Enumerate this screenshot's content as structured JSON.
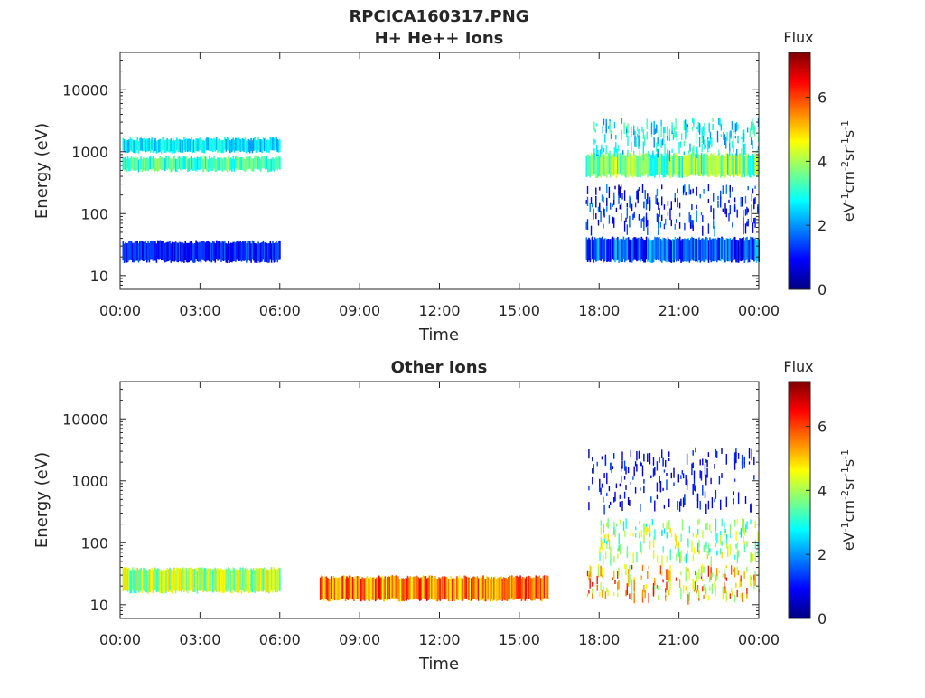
{
  "figure_title": "RPCICA160317.PNG",
  "colors": {
    "colormap": [
      "#00007f",
      "#0000ff",
      "#007fff",
      "#00ffff",
      "#7fff7f",
      "#ffff00",
      "#ff7f00",
      "#ff0000",
      "#7f0000"
    ],
    "axis": "#262626"
  },
  "chart_data": [
    {
      "type": "heatmap",
      "title": "H+ He++ Ions",
      "xlabel": "Time",
      "ylabel": "Energy (eV)",
      "xlim": [
        "00:00",
        "24:00"
      ],
      "ylim_eV": [
        6,
        40000
      ],
      "y_scale": "log",
      "x_ticks": [
        "00:00",
        "03:00",
        "06:00",
        "09:00",
        "12:00",
        "15:00",
        "18:00",
        "21:00",
        "00:00"
      ],
      "y_ticks": [
        {
          "value": 10,
          "label": "10"
        },
        {
          "value": 100,
          "label": "100"
        },
        {
          "value": 1000,
          "label": "1000"
        },
        {
          "value": 10000,
          "label": "10000"
        }
      ],
      "colorbar": {
        "title": "Flux",
        "range": [
          0,
          7.4
        ],
        "ticks": [
          "0",
          "2",
          "4",
          "6"
        ],
        "label": "eV-1 cm-2 sr-1 s-1"
      },
      "regions": [
        {
          "t": [
            "00:05",
            "06:00"
          ],
          "energy_eV": [
            17,
            35
          ],
          "flux": [
            0.5,
            1.8
          ]
        },
        {
          "t": [
            "00:05",
            "06:00"
          ],
          "energy_eV": [
            500,
            800
          ],
          "flux": [
            2.5,
            4.0
          ]
        },
        {
          "t": [
            "00:05",
            "06:00"
          ],
          "energy_eV": [
            1000,
            1600
          ],
          "flux": [
            2.0,
            3.2
          ]
        },
        {
          "t": [
            "17:30",
            "24:00"
          ],
          "energy_eV": [
            17,
            40
          ],
          "flux": [
            0.5,
            2.5
          ]
        },
        {
          "t": [
            "17:30",
            "24:00"
          ],
          "energy_eV": [
            60,
            300
          ],
          "flux": [
            0.3,
            2.0
          ]
        },
        {
          "t": [
            "17:30",
            "24:00"
          ],
          "energy_eV": [
            400,
            900
          ],
          "flux": [
            2.5,
            4.8
          ]
        },
        {
          "t": [
            "17:45",
            "24:00"
          ],
          "energy_eV": [
            1000,
            3500
          ],
          "flux": [
            1.8,
            3.5
          ]
        }
      ]
    },
    {
      "type": "heatmap",
      "title": "Other Ions",
      "xlabel": "Time",
      "ylabel": "Energy (eV)",
      "xlim": [
        "00:00",
        "24:00"
      ],
      "ylim_eV": [
        6,
        40000
      ],
      "y_scale": "log",
      "x_ticks": [
        "00:00",
        "03:00",
        "06:00",
        "09:00",
        "12:00",
        "15:00",
        "18:00",
        "21:00",
        "00:00"
      ],
      "y_ticks": [
        {
          "value": 10,
          "label": "10"
        },
        {
          "value": 100,
          "label": "100"
        },
        {
          "value": 1000,
          "label": "1000"
        },
        {
          "value": 10000,
          "label": "10000"
        }
      ],
      "colorbar": {
        "title": "Flux",
        "range": [
          0,
          7.4
        ],
        "ticks": [
          "0",
          "2",
          "4",
          "6"
        ],
        "label": "eV-1 cm-2 sr-1 s-1"
      },
      "regions": [
        {
          "t": [
            "00:05",
            "06:00"
          ],
          "energy_eV": [
            16,
            38
          ],
          "flux": [
            3.0,
            5.0
          ]
        },
        {
          "t": [
            "07:30",
            "16:05"
          ],
          "energy_eV": [
            12,
            28
          ],
          "flux": [
            4.5,
            6.5
          ]
        },
        {
          "t": [
            "17:30",
            "24:00"
          ],
          "energy_eV": [
            14,
            45
          ],
          "flux": [
            3.5,
            6.5
          ]
        },
        {
          "t": [
            "18:00",
            "24:00"
          ],
          "energy_eV": [
            60,
            250
          ],
          "flux": [
            2.5,
            5.0
          ]
        },
        {
          "t": [
            "17:30",
            "24:00"
          ],
          "energy_eV": [
            400,
            3500
          ],
          "flux": [
            0.3,
            1.5
          ]
        }
      ]
    }
  ]
}
